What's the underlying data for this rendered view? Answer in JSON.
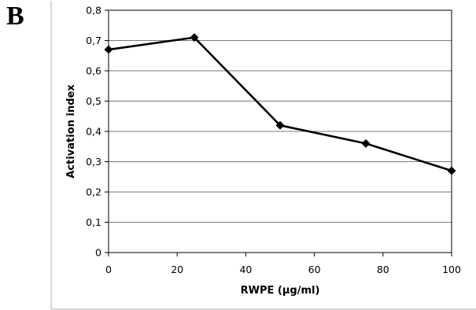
{
  "panel_label": "B",
  "chart_data": {
    "type": "line",
    "title": "",
    "xlabel": "RWPE (µg/ml)",
    "ylabel": "Activation index",
    "xlim": [
      0,
      100
    ],
    "ylim": [
      0,
      0.8
    ],
    "x_ticks": [
      0,
      20,
      40,
      60,
      80,
      100
    ],
    "x_tick_labels": [
      "0",
      "20",
      "40",
      "60",
      "80",
      "100"
    ],
    "y_ticks": [
      0,
      0.1,
      0.2,
      0.3,
      0.4,
      0.5,
      0.6,
      0.7,
      0.8
    ],
    "y_tick_labels": [
      "0",
      "0,1",
      "0,2",
      "0,3",
      "0,4",
      "0,5",
      "0,6",
      "0,7",
      "0,8"
    ],
    "grid": "horizontal",
    "legend": "none",
    "series": [
      {
        "x": [
          0,
          25,
          50,
          75,
          100
        ],
        "values": [
          0.67,
          0.71,
          0.42,
          0.36,
          0.27
        ],
        "color": "#000000",
        "marker": "diamond"
      }
    ]
  }
}
